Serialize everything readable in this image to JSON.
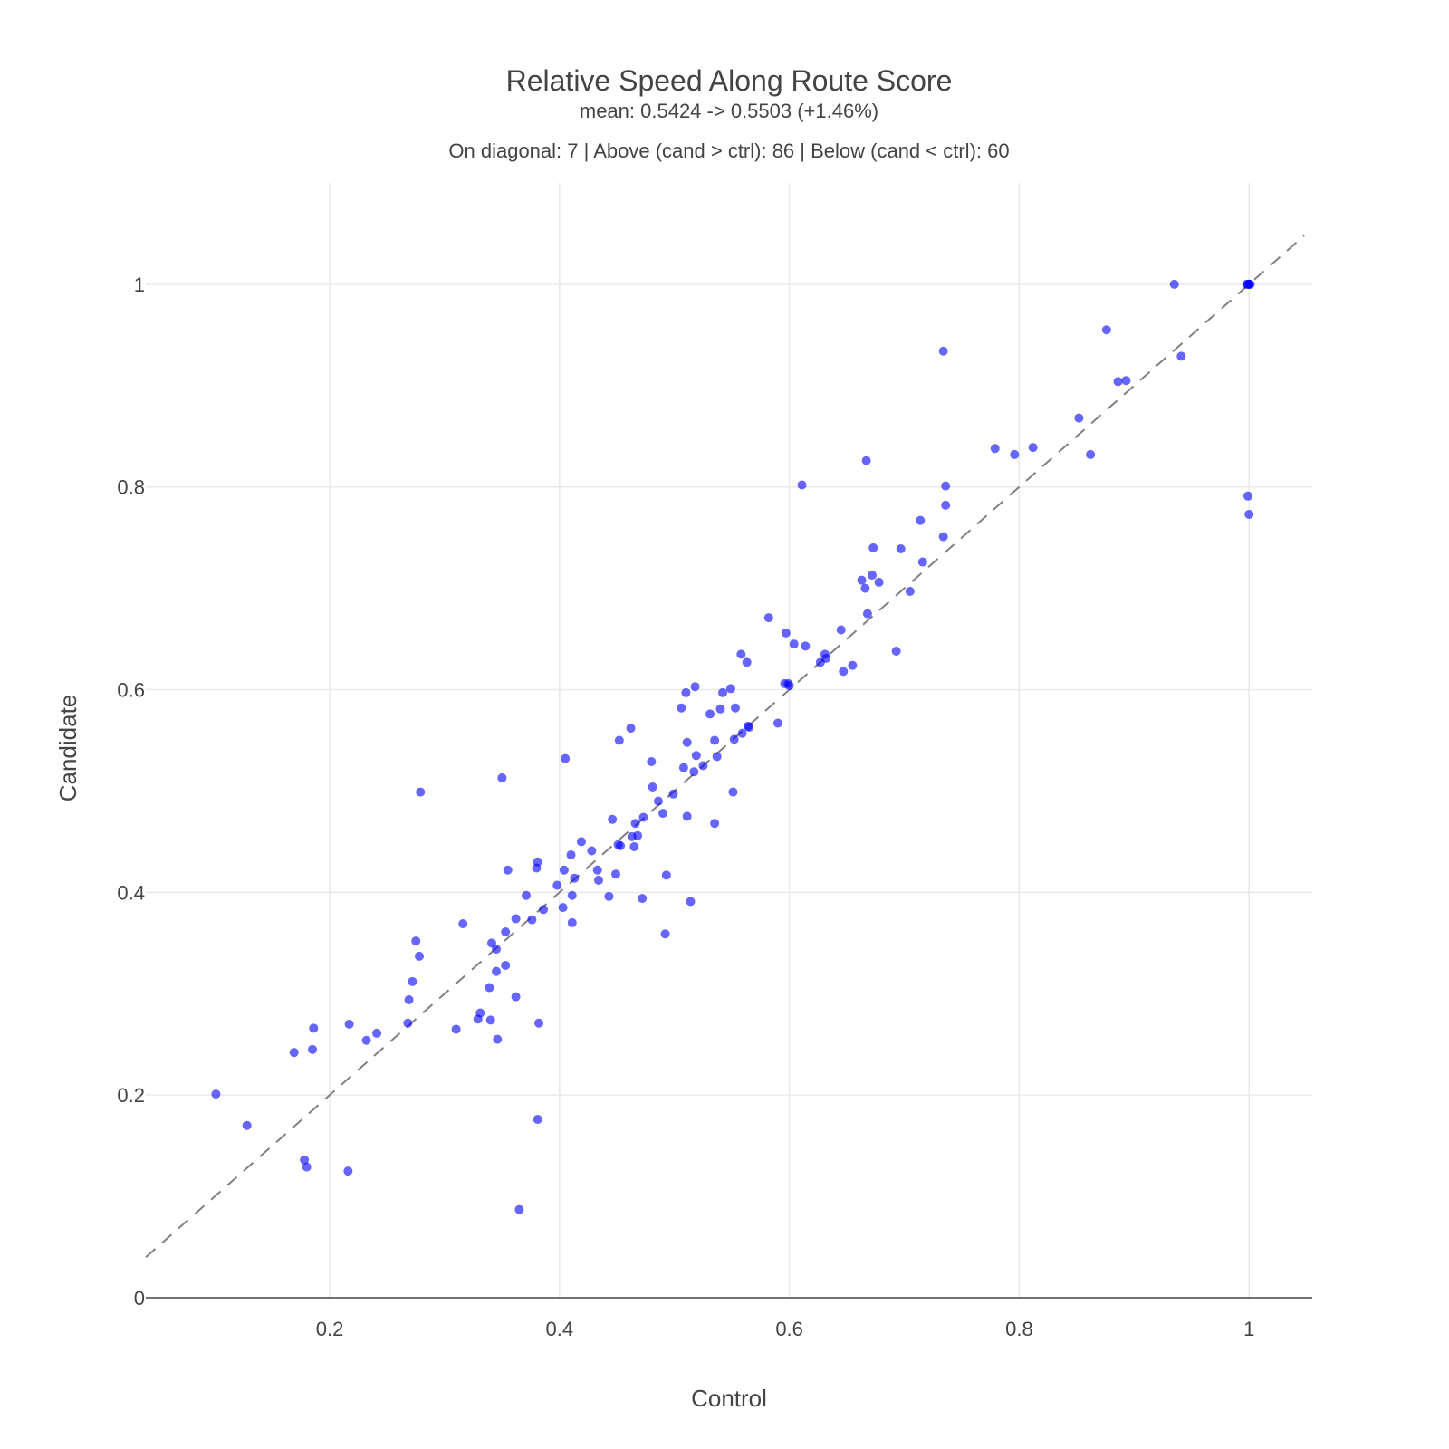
{
  "chart_data": {
    "type": "scatter",
    "title": "Relative Speed Along Route Score",
    "subtitle": "mean: 0.5424 -> 0.5503 (+1.46%)",
    "summary": "On diagonal: 7 | Above (cand > ctrl): 86 | Below (cand < ctrl): 60",
    "xlabel": "Control",
    "ylabel": "Candidate",
    "xlim": [
      0.04,
      1.055
    ],
    "ylim": [
      0,
      1.1
    ],
    "xticks": [
      0.2,
      0.4,
      0.6,
      0.8,
      1
    ],
    "yticks": [
      0,
      0.2,
      0.4,
      0.6,
      0.8,
      1
    ],
    "xtick_labels": [
      "0.2",
      "0.4",
      "0.6",
      "0.8",
      "1"
    ],
    "ytick_labels": [
      "0",
      "0.2",
      "0.4",
      "0.6",
      "0.8",
      "1"
    ],
    "grid": true,
    "reference_line": "y = x (dashed)",
    "marker_color": "#0000ff",
    "points": [
      [
        0.101,
        0.201
      ],
      [
        0.128,
        0.17
      ],
      [
        0.178,
        0.136
      ],
      [
        0.18,
        0.129
      ],
      [
        0.169,
        0.242
      ],
      [
        0.185,
        0.245
      ],
      [
        0.186,
        0.266
      ],
      [
        0.216,
        0.125
      ],
      [
        0.217,
        0.27
      ],
      [
        0.232,
        0.254
      ],
      [
        0.241,
        0.261
      ],
      [
        0.268,
        0.271
      ],
      [
        0.269,
        0.294
      ],
      [
        0.272,
        0.312
      ],
      [
        0.275,
        0.352
      ],
      [
        0.278,
        0.337
      ],
      [
        0.279,
        0.499
      ],
      [
        0.31,
        0.265
      ],
      [
        0.316,
        0.369
      ],
      [
        0.329,
        0.275
      ],
      [
        0.331,
        0.281
      ],
      [
        0.339,
        0.306
      ],
      [
        0.34,
        0.274
      ],
      [
        0.341,
        0.35
      ],
      [
        0.345,
        0.344
      ],
      [
        0.345,
        0.322
      ],
      [
        0.346,
        0.255
      ],
      [
        0.35,
        0.513
      ],
      [
        0.353,
        0.328
      ],
      [
        0.353,
        0.361
      ],
      [
        0.355,
        0.422
      ],
      [
        0.362,
        0.297
      ],
      [
        0.362,
        0.374
      ],
      [
        0.365,
        0.087
      ],
      [
        0.371,
        0.397
      ],
      [
        0.376,
        0.373
      ],
      [
        0.38,
        0.424
      ],
      [
        0.381,
        0.43
      ],
      [
        0.381,
        0.176
      ],
      [
        0.382,
        0.271
      ],
      [
        0.386,
        0.383
      ],
      [
        0.398,
        0.407
      ],
      [
        0.403,
        0.385
      ],
      [
        0.404,
        0.422
      ],
      [
        0.405,
        0.532
      ],
      [
        0.41,
        0.437
      ],
      [
        0.411,
        0.37
      ],
      [
        0.411,
        0.397
      ],
      [
        0.413,
        0.414
      ],
      [
        0.419,
        0.45
      ],
      [
        0.428,
        0.441
      ],
      [
        0.433,
        0.422
      ],
      [
        0.434,
        0.412
      ],
      [
        0.443,
        0.396
      ],
      [
        0.446,
        0.472
      ],
      [
        0.449,
        0.418
      ],
      [
        0.451,
        0.447
      ],
      [
        0.452,
        0.55
      ],
      [
        0.453,
        0.446
      ],
      [
        0.462,
        0.562
      ],
      [
        0.463,
        0.455
      ],
      [
        0.465,
        0.445
      ],
      [
        0.466,
        0.468
      ],
      [
        0.468,
        0.456
      ],
      [
        0.472,
        0.394
      ],
      [
        0.473,
        0.474
      ],
      [
        0.48,
        0.529
      ],
      [
        0.481,
        0.504
      ],
      [
        0.486,
        0.49
      ],
      [
        0.49,
        0.478
      ],
      [
        0.492,
        0.359
      ],
      [
        0.493,
        0.417
      ],
      [
        0.499,
        0.497
      ],
      [
        0.506,
        0.582
      ],
      [
        0.508,
        0.523
      ],
      [
        0.51,
        0.597
      ],
      [
        0.511,
        0.548
      ],
      [
        0.511,
        0.475
      ],
      [
        0.514,
        0.391
      ],
      [
        0.517,
        0.519
      ],
      [
        0.518,
        0.603
      ],
      [
        0.519,
        0.535
      ],
      [
        0.525,
        0.525
      ],
      [
        0.531,
        0.576
      ],
      [
        0.535,
        0.55
      ],
      [
        0.535,
        0.468
      ],
      [
        0.537,
        0.534
      ],
      [
        0.54,
        0.581
      ],
      [
        0.542,
        0.597
      ],
      [
        0.549,
        0.601
      ],
      [
        0.551,
        0.499
      ],
      [
        0.552,
        0.551
      ],
      [
        0.553,
        0.582
      ],
      [
        0.558,
        0.635
      ],
      [
        0.559,
        0.557
      ],
      [
        0.563,
        0.627
      ],
      [
        0.564,
        0.564
      ],
      [
        0.565,
        0.563
      ],
      [
        0.582,
        0.671
      ],
      [
        0.59,
        0.567
      ],
      [
        0.596,
        0.606
      ],
      [
        0.597,
        0.656
      ],
      [
        0.599,
        0.606
      ],
      [
        0.6,
        0.604
      ],
      [
        0.604,
        0.645
      ],
      [
        0.611,
        0.802
      ],
      [
        0.614,
        0.643
      ],
      [
        0.627,
        0.627
      ],
      [
        0.631,
        0.635
      ],
      [
        0.632,
        0.631
      ],
      [
        0.645,
        0.659
      ],
      [
        0.647,
        0.618
      ],
      [
        0.655,
        0.624
      ],
      [
        0.663,
        0.708
      ],
      [
        0.666,
        0.7
      ],
      [
        0.667,
        0.826
      ],
      [
        0.668,
        0.675
      ],
      [
        0.672,
        0.713
      ],
      [
        0.673,
        0.74
      ],
      [
        0.678,
        0.706
      ],
      [
        0.693,
        0.638
      ],
      [
        0.697,
        0.739
      ],
      [
        0.705,
        0.697
      ],
      [
        0.714,
        0.767
      ],
      [
        0.716,
        0.726
      ],
      [
        0.734,
        0.751
      ],
      [
        0.734,
        0.934
      ],
      [
        0.736,
        0.801
      ],
      [
        0.736,
        0.782
      ],
      [
        0.779,
        0.838
      ],
      [
        0.796,
        0.832
      ],
      [
        0.812,
        0.839
      ],
      [
        0.852,
        0.868
      ],
      [
        0.862,
        0.832
      ],
      [
        0.876,
        0.955
      ],
      [
        0.886,
        0.904
      ],
      [
        0.893,
        0.905
      ],
      [
        0.935,
        1.0
      ],
      [
        0.941,
        0.929
      ],
      [
        0.998,
        1.0
      ],
      [
        0.999,
        1.0
      ],
      [
        1.0,
        1.0
      ],
      [
        1.0,
        1.0
      ],
      [
        1.001,
        1.0
      ],
      [
        0.999,
        0.791
      ],
      [
        1.0,
        0.773
      ]
    ]
  }
}
